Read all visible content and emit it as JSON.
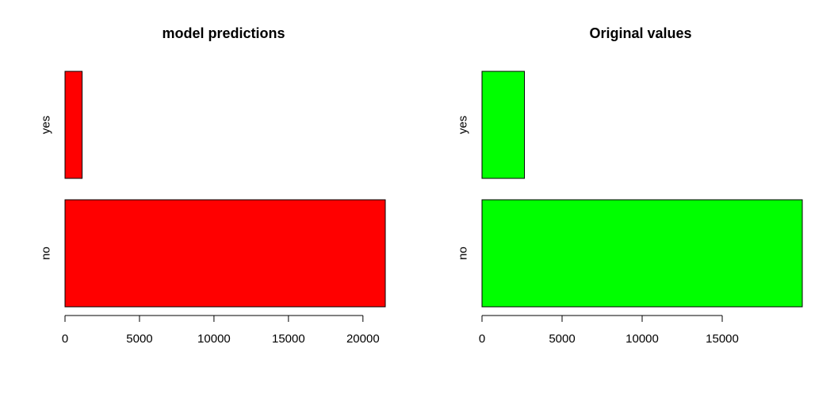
{
  "chart_data": [
    {
      "type": "bar",
      "orientation": "horizontal",
      "title": "model predictions",
      "categories": [
        "no",
        "yes"
      ],
      "values": [
        21500,
        1150
      ],
      "color": "#ff0000",
      "xlim": [
        0,
        21500
      ],
      "xticks": [
        0,
        5000,
        10000,
        15000,
        20000
      ],
      "xlabel": "",
      "ylabel": "",
      "grid": false
    },
    {
      "type": "bar",
      "orientation": "horizontal",
      "title": "Original values",
      "categories": [
        "no",
        "yes"
      ],
      "values": [
        20000,
        2650
      ],
      "color": "#00ff00",
      "xlim": [
        0,
        20000
      ],
      "xticks": [
        0,
        5000,
        10000,
        15000
      ],
      "xlabel": "",
      "ylabel": "",
      "grid": false
    }
  ]
}
